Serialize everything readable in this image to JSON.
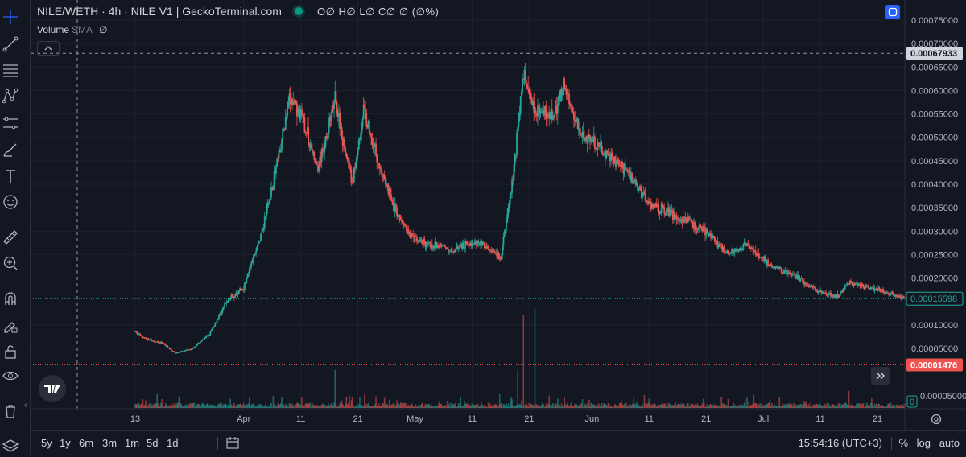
{
  "legend": {
    "title": "NILE/WETH · 4h · NILE V1 | GeckoTerminal.com",
    "ohlc": "O∅ H∅ L∅ C∅ ∅ (∅%)",
    "volume_label": "Volume",
    "volume_sma": "SMA",
    "volume_value": "∅",
    "live_dot_color": "#089981"
  },
  "toolbar_icons": [
    "crosshair-icon",
    "trend-line-icon",
    "fib-retracement-icon",
    "pattern-icon",
    "forecast-icon",
    "brush-icon",
    "text-icon",
    "emoji-icon",
    "ruler-icon",
    "zoom-in-icon",
    "magnet-icon",
    "lock-drawing-icon",
    "unlock-icon",
    "eye-icon",
    "trash-icon",
    "layers-icon"
  ],
  "price_axis": {
    "ticks": [
      "0.00075000",
      "0.00070000",
      "0.00065000",
      "0.00060000",
      "0.00055000",
      "0.00050000",
      "0.00045000",
      "0.00040000",
      "0.00035000",
      "0.00030000",
      "0.00025000",
      "0.00020000",
      "0.00010000",
      "0.00005000"
    ],
    "crosshair_label": "0.00067933",
    "last_price_label": "0.00015598",
    "low_label": "0.00001476",
    "volume_axis_label": "0.00005000",
    "volume_zero_label": "0"
  },
  "time_axis": {
    "labels": [
      "13",
      "Apr",
      "11",
      "21",
      "May",
      "11",
      "21",
      "Jun",
      "11",
      "21",
      "Jul",
      "11",
      "21"
    ]
  },
  "bottom_bar": {
    "ranges": [
      "5y",
      "1y",
      "6m",
      "3m",
      "1m",
      "5d",
      "1d"
    ],
    "clock": "15:54:16 (UTC+3)",
    "percent": "%",
    "log": "log",
    "auto": "auto"
  },
  "colors": {
    "up": "#26a69a",
    "down": "#ef5350",
    "background": "#131722",
    "grid": "#1e222d",
    "accent": "#2962ff"
  },
  "chart_data": {
    "type": "candlestick",
    "title": "NILE/WETH · 4h · NILE V1 | GeckoTerminal.com",
    "y_scale": "linear",
    "ylim": [
      0.0,
      0.00077
    ],
    "x_range": [
      "Mar 13",
      "Jul 26"
    ],
    "price_path": [
      {
        "date": "Mar 13",
        "price": 8.5e-05
      },
      {
        "date": "Mar 15",
        "price": 7e-05
      },
      {
        "date": "Mar 18",
        "price": 6e-05
      },
      {
        "date": "Mar 20",
        "price": 4e-05
      },
      {
        "date": "Mar 23",
        "price": 5e-05
      },
      {
        "date": "Mar 26",
        "price": 8e-05
      },
      {
        "date": "Mar 29",
        "price": 0.00015
      },
      {
        "date": "Apr 1",
        "price": 0.00018
      },
      {
        "date": "Apr 4",
        "price": 0.00029
      },
      {
        "date": "Apr 7",
        "price": 0.00045
      },
      {
        "date": "Apr 9",
        "price": 0.00058
      },
      {
        "date": "Apr 11",
        "price": 0.00055
      },
      {
        "date": "Apr 14",
        "price": 0.00043
      },
      {
        "date": "Apr 17",
        "price": 0.00058
      },
      {
        "date": "Apr 20",
        "price": 0.0004
      },
      {
        "date": "Apr 22",
        "price": 0.00056
      },
      {
        "date": "Apr 25",
        "price": 0.00043
      },
      {
        "date": "Apr 28",
        "price": 0.00033
      },
      {
        "date": "May 1",
        "price": 0.00028
      },
      {
        "date": "May 4",
        "price": 0.00027
      },
      {
        "date": "May 8",
        "price": 0.00026
      },
      {
        "date": "May 12",
        "price": 0.00028
      },
      {
        "date": "May 16",
        "price": 0.00024
      },
      {
        "date": "May 18",
        "price": 0.0004
      },
      {
        "date": "May 20",
        "price": 0.00064
      },
      {
        "date": "May 22",
        "price": 0.00056
      },
      {
        "date": "May 25",
        "price": 0.00054
      },
      {
        "date": "May 27",
        "price": 0.00061
      },
      {
        "date": "May 30",
        "price": 0.00051
      },
      {
        "date": "Jun 3",
        "price": 0.00047
      },
      {
        "date": "Jun 7",
        "price": 0.00043
      },
      {
        "date": "Jun 11",
        "price": 0.00036
      },
      {
        "date": "Jun 16",
        "price": 0.00033
      },
      {
        "date": "Jun 21",
        "price": 0.0003
      },
      {
        "date": "Jun 25",
        "price": 0.00025
      },
      {
        "date": "Jun 28",
        "price": 0.00027
      },
      {
        "date": "Jul 2",
        "price": 0.00023
      },
      {
        "date": "Jul 7",
        "price": 0.0002
      },
      {
        "date": "Jul 11",
        "price": 0.00017
      },
      {
        "date": "Jul 14",
        "price": 0.00016
      },
      {
        "date": "Jul 16",
        "price": 0.00019
      },
      {
        "date": "Jul 21",
        "price": 0.000175
      },
      {
        "date": "Jul 26",
        "price": 0.000156
      }
    ],
    "crosshair_price": 0.00067933,
    "last_price": 0.00015598,
    "low_line_price": 1.476e-05,
    "volume_spikes": [
      {
        "date": "Apr 17",
        "volume": 4e-05
      },
      {
        "date": "May 19",
        "volume": 4e-05
      },
      {
        "date": "May 20",
        "volume": 9.8e-05
      },
      {
        "date": "May 22",
        "volume": 0.000105
      },
      {
        "date": "Jul 16",
        "volume": 1.8e-05
      }
    ]
  }
}
